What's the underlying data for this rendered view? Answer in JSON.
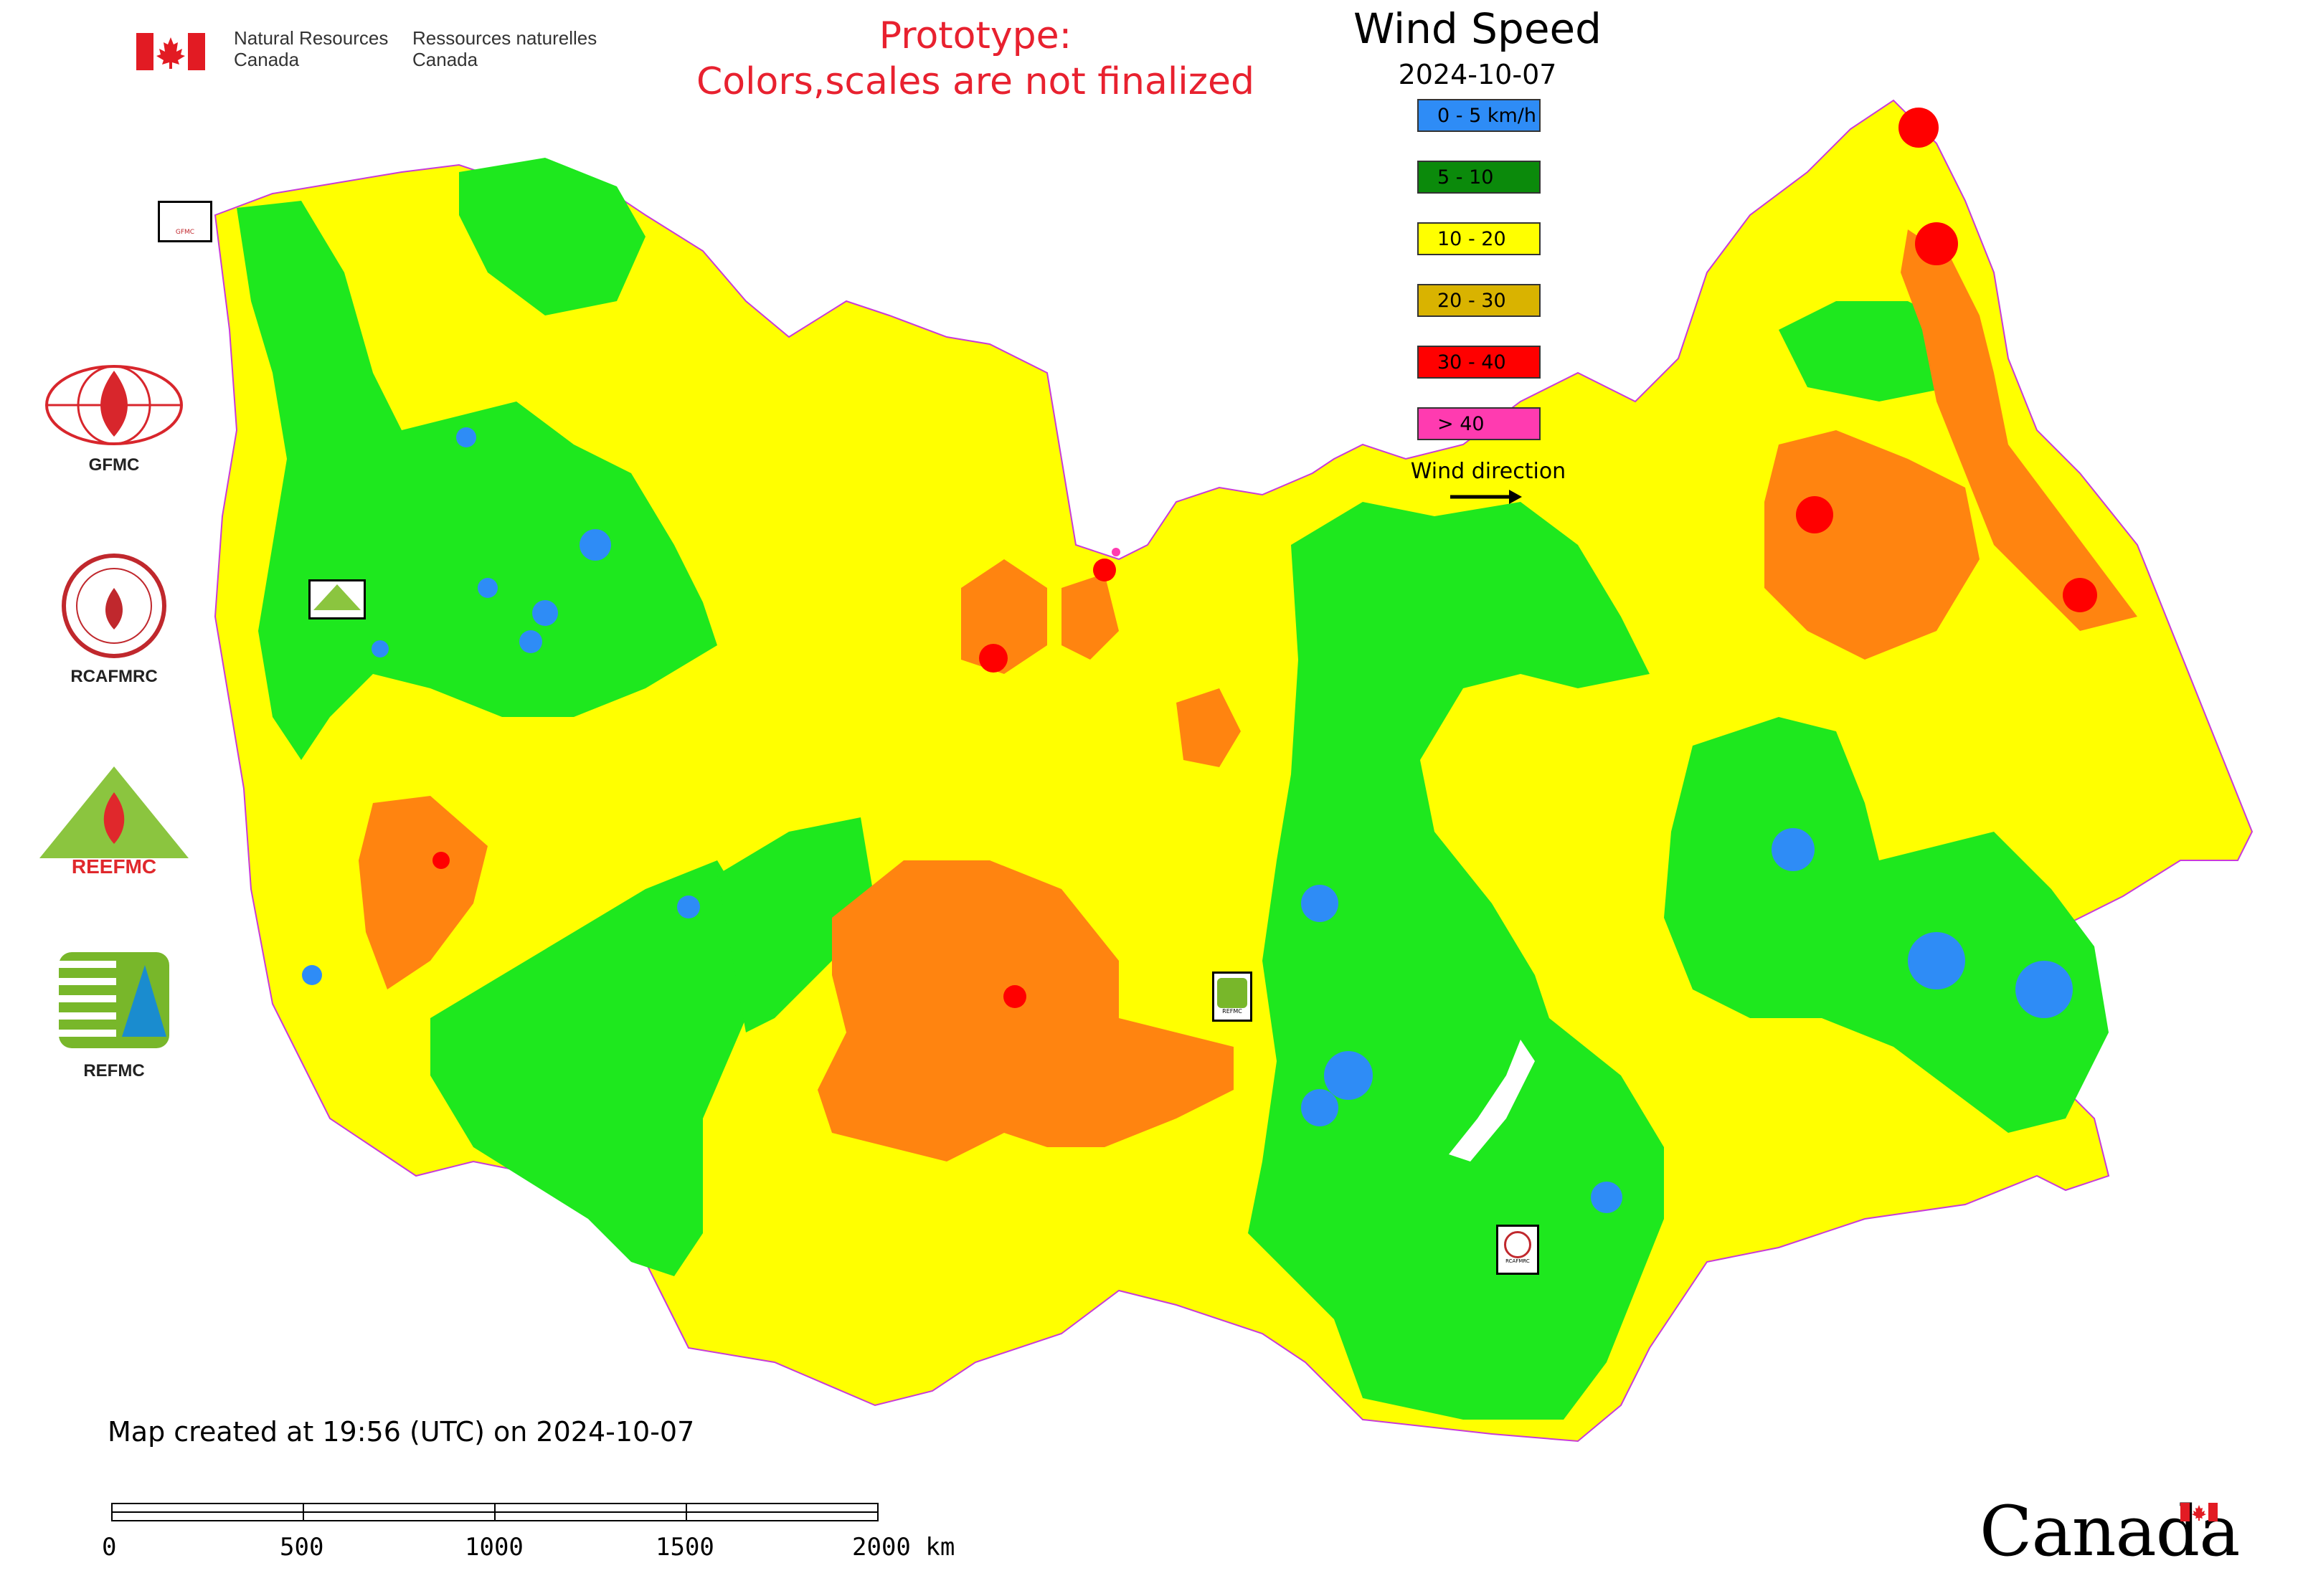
{
  "header": {
    "agency_en_1": "Natural Resources",
    "agency_en_2": "Canada",
    "agency_fr_1": "Ressources naturelles",
    "agency_fr_2": "Canada",
    "prototype_line1": "Prototype:",
    "prototype_line2": "Colors,scales are not finalized"
  },
  "legend": {
    "title": "Wind Speed",
    "date": "2024-10-07",
    "items": [
      {
        "label": "0 - 5 km/h",
        "color": "#2e8cf6"
      },
      {
        "label": "5 - 10",
        "color": "#0b8a0b"
      },
      {
        "label": "10 - 20",
        "color": "#ffff00"
      },
      {
        "label": "20 - 30",
        "color": "#d9b300"
      },
      {
        "label": "30 - 40",
        "color": "#ff0000"
      },
      {
        "label": "> 40",
        "color": "#ff3bb0"
      }
    ],
    "wind_direction_label": "Wind direction"
  },
  "map_colors": {
    "calm": "#2e8cf6",
    "green": "#1ee81e",
    "yellow": "#ffff00",
    "orange": "#ff8410",
    "red": "#ff0000",
    "magenta": "#ff3bb0"
  },
  "side_logos": [
    {
      "caption": "GFMC",
      "icon": "gfmc-logo-icon"
    },
    {
      "caption": "RCAFMRC",
      "icon": "rcafmrc-logo-icon"
    },
    {
      "caption": "",
      "icon": "reefmc-logo-icon",
      "wordmark": "REEFMC"
    },
    {
      "caption": "REFMC",
      "icon": "refmc-logo-icon"
    }
  ],
  "map_badges": {
    "gfmc": "GFMC",
    "reefmc": "REEFMC",
    "refmc": "REFMC",
    "rcafmrc": "RCAFMRC"
  },
  "footer": {
    "created": "Map created at 19:56 (UTC) on 2024-10-07",
    "scale_ticks": [
      "0",
      "500",
      "1000",
      "1500",
      "2000 km"
    ],
    "wordmark": "Canada"
  }
}
